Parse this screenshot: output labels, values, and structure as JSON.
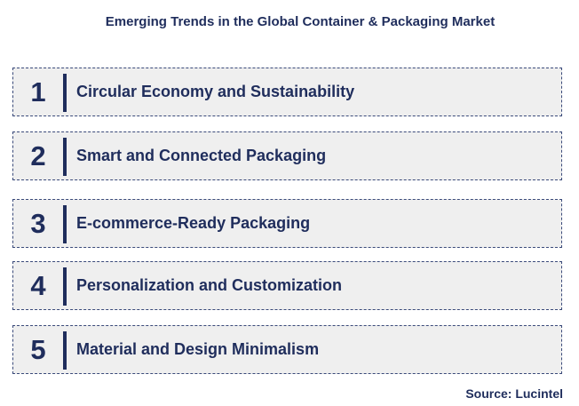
{
  "title": "Emerging Trends in the Global Container & Packaging Market",
  "trends": [
    {
      "number": "1",
      "label": "Circular Economy and Sustainability"
    },
    {
      "number": "2",
      "label": "Smart and Connected Packaging"
    },
    {
      "number": "3",
      "label": "E-commerce-Ready Packaging"
    },
    {
      "number": "4",
      "label": "Personalization and Customization"
    },
    {
      "number": "5",
      "label": "Material and Design Minimalism"
    }
  ],
  "source": "Source: Lucintel",
  "colors": {
    "text": "#1f2d5c",
    "box_fill": "#efefef",
    "box_border": "#3a4a7a"
  }
}
